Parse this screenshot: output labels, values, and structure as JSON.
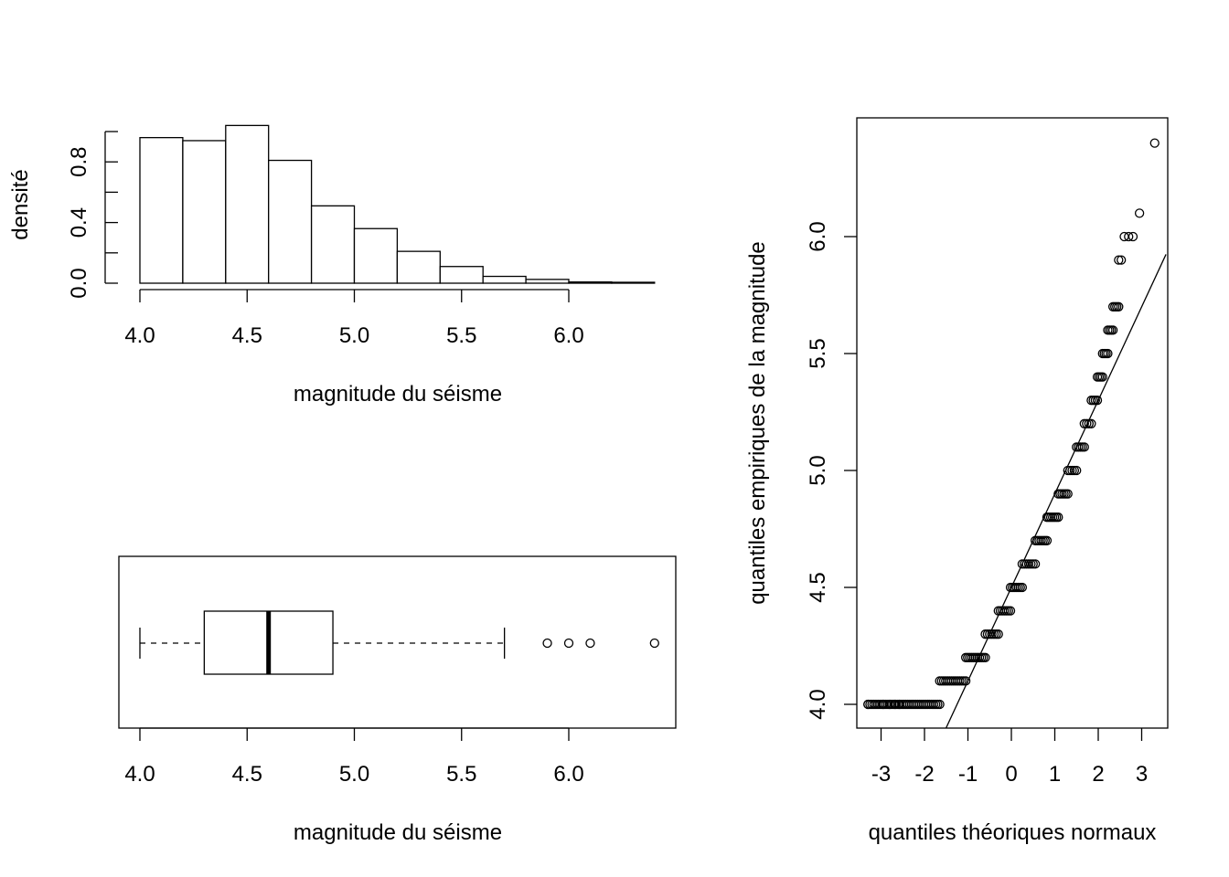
{
  "chart_data": [
    {
      "type": "bar",
      "subtype": "histogram",
      "xlabel": "magnitude du séisme",
      "ylabel": "densité",
      "bin_edges": [
        4.0,
        4.2,
        4.4,
        4.6,
        4.8,
        5.0,
        5.2,
        5.4,
        5.6,
        5.8,
        6.0,
        6.2,
        6.4
      ],
      "values": [
        0.96,
        0.94,
        1.04,
        0.81,
        0.51,
        0.36,
        0.21,
        0.11,
        0.045,
        0.025,
        0.008,
        0.006
      ],
      "xlim": [
        4.0,
        6.4
      ],
      "ylim": [
        0,
        1.04
      ],
      "x_ticks": [
        4.0,
        4.5,
        5.0,
        5.5,
        6.0
      ],
      "x_tick_labels": [
        "4.0",
        "4.5",
        "5.0",
        "5.5",
        "6.0"
      ],
      "y_ticks": [
        0.0,
        0.2,
        0.4,
        0.6,
        0.8,
        1.0
      ],
      "y_tick_labels": [
        "0.0",
        "",
        "0.4",
        "",
        "0.8",
        ""
      ]
    },
    {
      "type": "box",
      "orientation": "horizontal",
      "xlabel": "magnitude du séisme",
      "whisker_low": 4.0,
      "q1": 4.3,
      "median": 4.6,
      "q3": 4.9,
      "whisker_high": 5.7,
      "outliers": [
        5.9,
        6.0,
        6.1,
        6.4
      ],
      "xlim": [
        3.91,
        6.49
      ],
      "x_ticks": [
        4.0,
        4.5,
        5.0,
        5.5,
        6.0
      ],
      "x_tick_labels": [
        "4.0",
        "4.5",
        "5.0",
        "5.5",
        "6.0"
      ]
    },
    {
      "type": "scatter",
      "subtype": "qq-normal",
      "xlabel": "quantiles théoriques normaux",
      "ylabel": "quantiles empiriques de la magnitude",
      "xlim": [
        -3.56,
        3.56
      ],
      "ylim": [
        3.9,
        6.5
      ],
      "x_ticks": [
        -3,
        -2,
        -1,
        0,
        1,
        2,
        3
      ],
      "x_tick_labels": [
        "-3",
        "-2",
        "-1",
        "0",
        "1",
        "2",
        "3"
      ],
      "y_ticks": [
        4.0,
        4.5,
        5.0,
        5.5,
        6.0
      ],
      "y_tick_labels": [
        "4.0",
        "4.5",
        "5.0",
        "5.5",
        "6.0"
      ],
      "groups": [
        {
          "y": 4.0,
          "x_from": -3.3,
          "x_to": -1.65
        },
        {
          "y": 4.1,
          "x_from": -1.65,
          "x_to": -1.05
        },
        {
          "y": 4.2,
          "x_from": -1.05,
          "x_to": -0.6
        },
        {
          "y": 4.3,
          "x_from": -0.6,
          "x_to": -0.3
        },
        {
          "y": 4.4,
          "x_from": -0.3,
          "x_to": -0.02
        },
        {
          "y": 4.5,
          "x_from": -0.02,
          "x_to": 0.25
        },
        {
          "y": 4.6,
          "x_from": 0.25,
          "x_to": 0.55
        },
        {
          "y": 4.7,
          "x_from": 0.55,
          "x_to": 0.82
        },
        {
          "y": 4.8,
          "x_from": 0.82,
          "x_to": 1.08
        },
        {
          "y": 4.9,
          "x_from": 1.08,
          "x_to": 1.3
        },
        {
          "y": 5.0,
          "x_from": 1.3,
          "x_to": 1.5
        },
        {
          "y": 5.1,
          "x_from": 1.5,
          "x_to": 1.68
        },
        {
          "y": 5.2,
          "x_from": 1.68,
          "x_to": 1.84
        },
        {
          "y": 5.3,
          "x_from": 1.84,
          "x_to": 1.98
        },
        {
          "y": 5.4,
          "x_from": 1.98,
          "x_to": 2.1
        },
        {
          "y": 5.5,
          "x_from": 2.1,
          "x_to": 2.22
        },
        {
          "y": 5.6,
          "x_from": 2.22,
          "x_to": 2.34
        },
        {
          "y": 5.7,
          "x_from": 2.34,
          "x_to": 2.47
        }
      ],
      "individual_points": [
        {
          "x": -3.3,
          "y": 4.0
        },
        {
          "x": -2.95,
          "y": 4.0
        },
        {
          "x": -2.8,
          "y": 4.0
        },
        {
          "x": -2.68,
          "y": 4.0
        },
        {
          "x": -2.58,
          "y": 4.0
        },
        {
          "x": 2.47,
          "y": 5.9
        },
        {
          "x": 2.53,
          "y": 5.9
        },
        {
          "x": 2.6,
          "y": 6.0
        },
        {
          "x": 2.7,
          "y": 6.0
        },
        {
          "x": 2.8,
          "y": 6.0
        },
        {
          "x": 2.95,
          "y": 6.1
        },
        {
          "x": 3.3,
          "y": 6.4
        }
      ],
      "reference_line": {
        "slope": 0.4,
        "intercept": 4.5
      }
    }
  ]
}
